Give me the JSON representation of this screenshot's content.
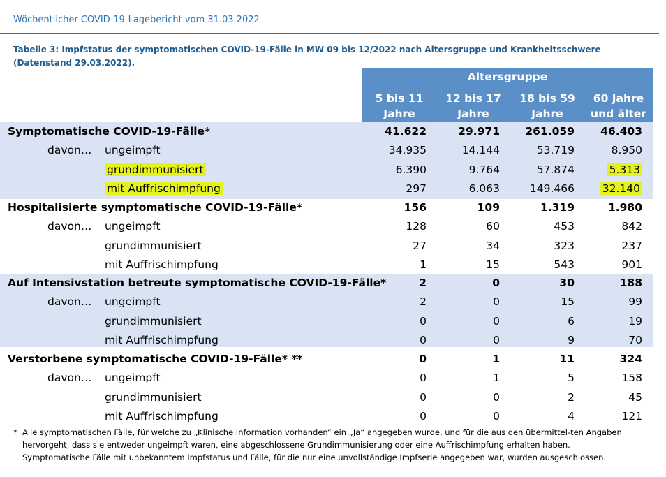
{
  "header": {
    "title": "Wöchentlicher COVID-19-Lagebericht vom 31.03.2022"
  },
  "caption": "Tabelle 3: Impfstatus der symptomatischen COVID-19-Fälle in MW 09 bis 12/2022 nach Altersgruppe und Krankheitsschwere (Datenstand 29.03.2022).",
  "table": {
    "group_header": "Altersgruppe",
    "columns": [
      {
        "line1": "5 bis 11",
        "line2": "Jahre"
      },
      {
        "line1": "12 bis 17",
        "line2": "Jahre"
      },
      {
        "line1": "18 bis 59",
        "line2": "Jahre"
      },
      {
        "line1": "60 Jahre",
        "line2": "und älter"
      }
    ],
    "davon_label": "davon…",
    "sections": [
      {
        "label": "Symptomatische COVID-19-Fälle*",
        "totals": [
          "41.622",
          "29.971",
          "261.059",
          "46.403"
        ],
        "rows": [
          {
            "label": "ungeimpft",
            "values": [
              "34.935",
              "14.144",
              "53.719",
              "8.950"
            ]
          },
          {
            "label": "grundimmunisiert",
            "values": [
              "6.390",
              "9.764",
              "57.874",
              "5.313"
            ]
          },
          {
            "label": "mit Auffrischimpfung",
            "values": [
              "297",
              "6.063",
              "149.466",
              "32.140"
            ]
          }
        ]
      },
      {
        "label": "Hospitalisierte symptomatische COVID-19-Fälle*",
        "totals": [
          "156",
          "109",
          "1.319",
          "1.980"
        ],
        "rows": [
          {
            "label": "ungeimpft",
            "values": [
              "128",
              "60",
              "453",
              "842"
            ]
          },
          {
            "label": "grundimmunisiert",
            "values": [
              "27",
              "34",
              "323",
              "237"
            ]
          },
          {
            "label": "mit Auffrischimpfung",
            "values": [
              "1",
              "15",
              "543",
              "901"
            ]
          }
        ]
      },
      {
        "label": "Auf Intensivstation betreute symptomatische COVID-19-Fälle*",
        "totals": [
          "2",
          "0",
          "30",
          "188"
        ],
        "rows": [
          {
            "label": "ungeimpft",
            "values": [
              "2",
              "0",
              "15",
              "99"
            ]
          },
          {
            "label": "grundimmunisiert",
            "values": [
              "0",
              "0",
              "6",
              "19"
            ]
          },
          {
            "label": "mit Auffrischimpfung",
            "values": [
              "0",
              "0",
              "9",
              "70"
            ]
          }
        ]
      },
      {
        "label": "Verstorbene symptomatische COVID-19-Fälle* **",
        "totals": [
          "0",
          "1",
          "11",
          "324"
        ],
        "rows": [
          {
            "label": "ungeimpft",
            "values": [
              "0",
              "1",
              "5",
              "158"
            ]
          },
          {
            "label": "grundimmunisiert",
            "values": [
              "0",
              "0",
              "2",
              "45"
            ]
          },
          {
            "label": "mit Auffrischimpfung",
            "values": [
              "0",
              "0",
              "4",
              "121"
            ]
          }
        ]
      }
    ]
  },
  "footnote": {
    "marker": "*",
    "text": "Alle symptomatischen Fälle, für welche zu „Klinische Information vorhanden“ ein „Ja“ angegeben wurde, und für die aus den übermittel-ten Angaben hervorgeht, dass sie entweder ungeimpft waren, eine abgeschlossene Grundimmunisierung oder eine Auffrischimpfung erhalten haben. Symptomatische Fälle mit unbekanntem Impfstatus und Fälle, für die nur eine unvollständige Impfserie angegeben war, wurden ausgeschlossen."
  },
  "colors": {
    "header_blue": "#2e74b5",
    "table_header_bg": "#5b8fc8",
    "band_bg": "#dae3f3",
    "highlight": "#e6f21c"
  }
}
